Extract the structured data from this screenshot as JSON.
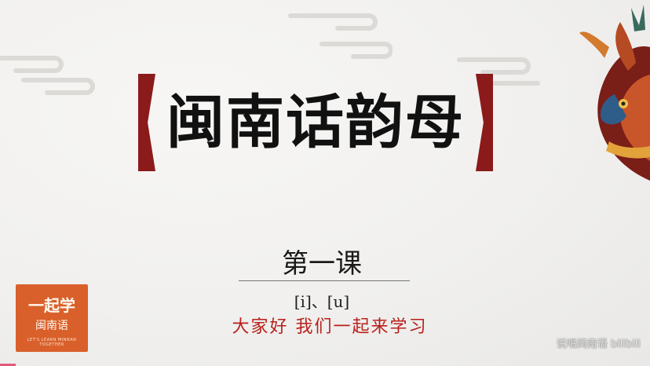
{
  "slide": {
    "title": "闽南话韵母",
    "lesson": "第一课",
    "phonetics": "[i]、[u]",
    "greeting": "大家好 我们一起来学习"
  },
  "logo": {
    "main": "一起学",
    "sub": "闽南语",
    "tagline": "LET'S LEARN MINNAN TOGETHER"
  },
  "watermark": {
    "text": "说唱闽南语 bilibili"
  },
  "colors": {
    "bracket": "#8b1a1a",
    "greeting": "#b8201b",
    "logo_bg": "#d9602a"
  }
}
